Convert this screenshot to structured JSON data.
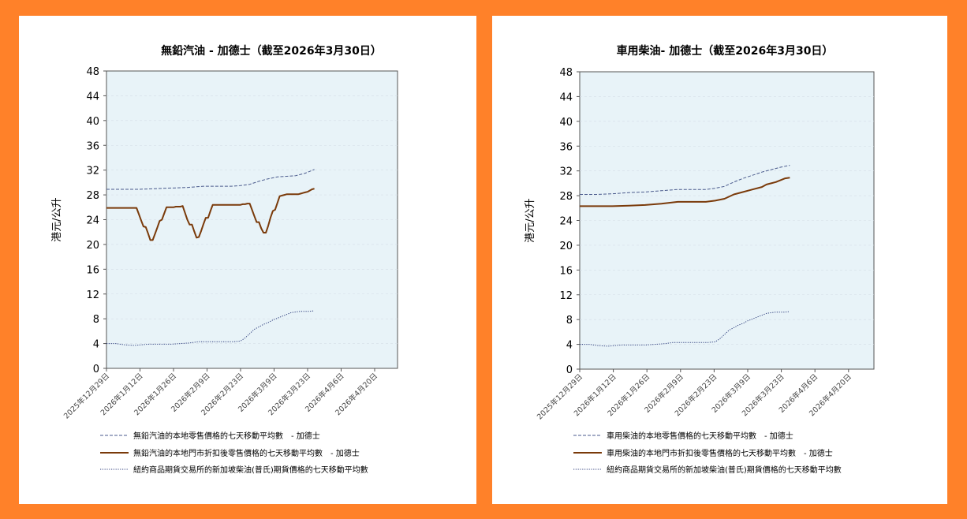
{
  "colors": {
    "background": "#FF8129",
    "panel": "#FFFFFF",
    "plot_area": "#E8F3F8",
    "local_retail": "#4A5A8C",
    "discounted": "#7A3A0A",
    "futures": "#2A3A7A",
    "grid": "#D5DEE6"
  },
  "chart_data": [
    {
      "type": "line",
      "title": "無鉛汽油 - 加德士（截至2026年3月30日）",
      "ylabel": "港元/公升",
      "xlabel": "",
      "ylim": [
        0,
        48
      ],
      "yticks": [
        "0",
        "4",
        "8",
        "12",
        "16",
        "20",
        "24",
        "28",
        "32",
        "36",
        "40",
        "44",
        "48"
      ],
      "xticks": [
        "2025年12月29日",
        "2026年1月12日",
        "2026年1月26日",
        "2026年2月9日",
        "2026年2月23日",
        "2026年3月9日",
        "2026年3月23日",
        "2026年4月6日",
        "2026年4月20日"
      ],
      "grid": true,
      "legend_position": "bottom",
      "series": [
        {
          "name": "無鉛汽油的本地零售價格的七天移動平均數　- 加德士",
          "style": "dashed",
          "color": "#4A5A8C",
          "x": [
            0,
            7,
            14,
            21,
            28,
            35,
            42,
            49,
            54,
            58,
            62,
            66,
            70,
            74,
            78,
            82,
            86,
            90
          ],
          "values": [
            28.9,
            28.9,
            28.9,
            29.0,
            29.1,
            29.2,
            29.4,
            29.4,
            29.4,
            29.5,
            29.7,
            30.2,
            30.6,
            30.9,
            31.0,
            31.1,
            31.5,
            32.1
          ]
        },
        {
          "name": "無鉛汽油的本地門市折扣後零售價格的七天移動平均數　- 加德士",
          "style": "solid",
          "color": "#7A3A0A",
          "x": [
            0,
            6,
            13,
            14,
            15,
            16,
            17,
            18,
            19,
            20,
            21,
            22,
            23,
            24,
            25,
            26,
            27,
            28,
            29,
            30,
            31,
            32,
            33,
            34,
            35,
            36,
            37,
            38,
            39,
            40,
            41,
            42,
            43,
            44,
            45,
            46,
            47,
            48,
            49,
            50,
            51,
            52,
            53,
            54,
            55,
            56,
            57,
            58,
            59,
            60,
            61,
            62,
            63,
            64,
            65,
            66,
            67,
            68,
            69,
            70,
            71,
            72,
            73,
            74,
            75,
            76,
            77,
            78,
            79,
            80,
            81,
            82,
            83,
            84,
            85,
            86,
            87,
            88,
            89,
            90
          ],
          "values": [
            25.9,
            25.9,
            25.9,
            24.9,
            23.9,
            22.9,
            22.8,
            21.8,
            20.7,
            20.7,
            21.7,
            22.7,
            23.8,
            24.0,
            25.0,
            26.0,
            26.0,
            26.0,
            26.0,
            26.1,
            26.1,
            26.1,
            26.2,
            25.1,
            24.0,
            23.2,
            23.2,
            22.1,
            21.1,
            21.2,
            22.2,
            23.3,
            24.3,
            24.3,
            25.4,
            26.4,
            26.4,
            26.4,
            26.4,
            26.4,
            26.4,
            26.4,
            26.4,
            26.4,
            26.4,
            26.4,
            26.4,
            26.4,
            26.5,
            26.5,
            26.6,
            26.6,
            25.6,
            24.6,
            23.6,
            23.6,
            22.6,
            21.9,
            21.9,
            23.0,
            24.3,
            25.4,
            25.6,
            26.7,
            27.8,
            27.9,
            28.0,
            28.1,
            28.1,
            28.1,
            28.1,
            28.1,
            28.1,
            28.2,
            28.3,
            28.4,
            28.5,
            28.7,
            28.9,
            29.0
          ]
        },
        {
          "name": "紐約商品期貨交易所的新加坡柴油(普氏)期貨價格的七天移動平均數",
          "style": "dotted",
          "color": "#2A3A7A",
          "x": [
            0,
            4,
            8,
            12,
            18,
            24,
            28,
            32,
            36,
            40,
            45,
            50,
            55,
            58,
            60,
            62,
            64,
            66,
            68,
            70,
            72,
            74,
            76,
            78,
            80,
            82,
            84,
            86,
            88,
            90
          ],
          "values": [
            4.0,
            4.0,
            3.8,
            3.7,
            3.9,
            3.9,
            3.9,
            4.0,
            4.1,
            4.3,
            4.3,
            4.3,
            4.3,
            4.4,
            4.9,
            5.6,
            6.3,
            6.7,
            7.1,
            7.4,
            7.8,
            8.1,
            8.4,
            8.7,
            9.0,
            9.1,
            9.2,
            9.2,
            9.2,
            9.3
          ]
        }
      ]
    },
    {
      "type": "line",
      "title": "車用柴油- 加德士（截至2026年3月30日）",
      "ylabel": "港元/公升",
      "xlabel": "",
      "ylim": [
        0,
        48
      ],
      "yticks": [
        "0",
        "4",
        "8",
        "12",
        "16",
        "20",
        "24",
        "28",
        "32",
        "36",
        "40",
        "44",
        "48"
      ],
      "xticks": [
        "2025年12月29日",
        "2026年1月12日",
        "2026年1月26日",
        "2026年2月9日",
        "2026年2月23日",
        "2026年3月9日",
        "2026年3月23日",
        "2026年4月6日",
        "2026年4月20日"
      ],
      "grid": true,
      "legend_position": "bottom",
      "series": [
        {
          "name": "車用柴油的本地零售價格的七天移動平均數　- 加德士",
          "style": "dashed",
          "color": "#4A5A8C",
          "x": [
            0,
            7,
            14,
            21,
            28,
            35,
            42,
            49,
            54,
            58,
            62,
            66,
            70,
            74,
            78,
            82,
            86,
            90
          ],
          "values": [
            28.2,
            28.2,
            28.3,
            28.5,
            28.6,
            28.8,
            29.0,
            29.0,
            29.0,
            29.2,
            29.5,
            30.2,
            30.8,
            31.3,
            31.8,
            32.2,
            32.6,
            32.9
          ]
        },
        {
          "name": "車用柴油的本地門市折扣後零售價格的七天移動平均數　- 加德士",
          "style": "solid",
          "color": "#7A3A0A",
          "x": [
            0,
            7,
            14,
            21,
            28,
            35,
            42,
            49,
            54,
            58,
            62,
            66,
            70,
            74,
            78,
            80,
            82,
            84,
            86,
            88,
            90
          ],
          "values": [
            26.3,
            26.3,
            26.3,
            26.4,
            26.5,
            26.7,
            27.0,
            27.0,
            27.0,
            27.2,
            27.5,
            28.2,
            28.6,
            29.0,
            29.4,
            29.8,
            30.0,
            30.2,
            30.5,
            30.8,
            30.9
          ]
        },
        {
          "name": "紐約商品期貨交易所的新加坡柴油(普氏)期貨價格的七天移動平均數",
          "style": "dotted",
          "color": "#2A3A7A",
          "x": [
            0,
            4,
            8,
            12,
            18,
            24,
            28,
            32,
            36,
            40,
            45,
            50,
            55,
            58,
            60,
            62,
            64,
            66,
            68,
            70,
            72,
            74,
            76,
            78,
            80,
            82,
            84,
            86,
            88,
            90
          ],
          "values": [
            4.0,
            4.0,
            3.8,
            3.7,
            3.9,
            3.9,
            3.9,
            4.0,
            4.1,
            4.3,
            4.3,
            4.3,
            4.3,
            4.4,
            4.9,
            5.6,
            6.3,
            6.7,
            7.1,
            7.4,
            7.8,
            8.1,
            8.4,
            8.7,
            9.0,
            9.1,
            9.2,
            9.2,
            9.2,
            9.3
          ]
        }
      ]
    }
  ]
}
